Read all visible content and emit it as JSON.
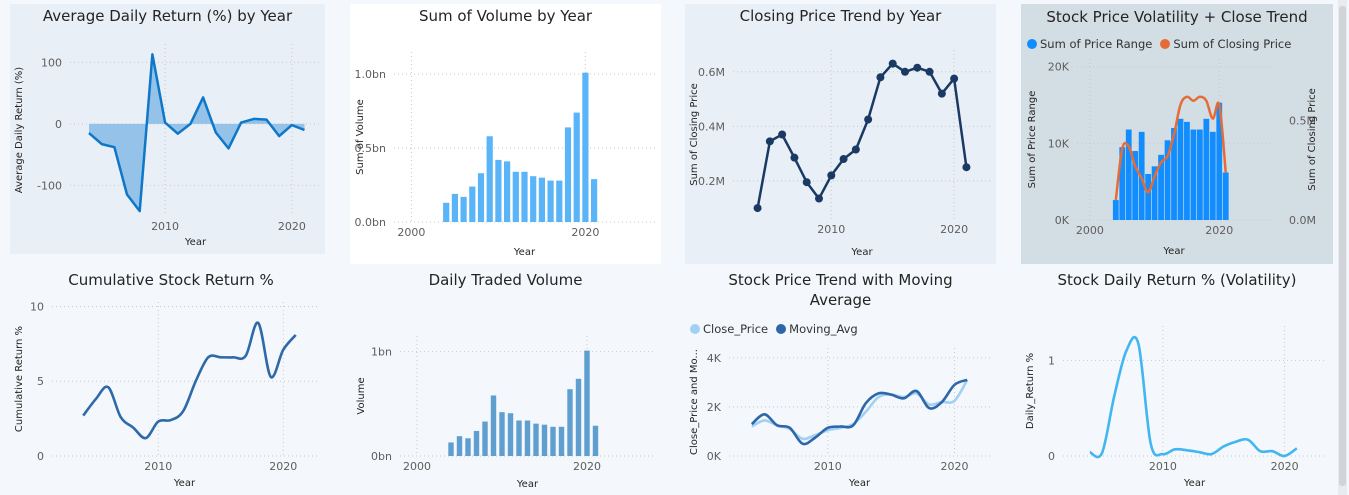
{
  "tiles": [
    {
      "title": "Average Daily Return (%) by Year",
      "chart_data": {
        "type": "area",
        "x": [
          2004,
          2005,
          2006,
          2007,
          2008,
          2009,
          2010,
          2011,
          2012,
          2013,
          2014,
          2015,
          2016,
          2017,
          2018,
          2019,
          2020,
          2021
        ],
        "values": [
          -15,
          -33,
          -38,
          -115,
          -142,
          113,
          2,
          -16,
          0,
          43,
          -14,
          -40,
          2,
          8,
          7,
          -20,
          -2,
          -10
        ],
        "xlim": [
          2002.5,
          2022.3
        ],
        "ylim": [
          -150,
          130
        ],
        "xticks": [
          2010,
          2020
        ],
        "yticks": [
          100,
          0,
          -100
        ],
        "xlabel": "Year",
        "ylabel": "Average Daily Return (%)",
        "color": "#0e77c8",
        "fill": "#8bbde6",
        "grid": true
      }
    },
    {
      "title": "Sum of Volume by Year",
      "chart_data": {
        "type": "bar",
        "x": [
          2004,
          2005,
          2006,
          2007,
          2008,
          2009,
          2010,
          2011,
          2012,
          2013,
          2014,
          2015,
          2016,
          2017,
          2018,
          2019,
          2020,
          2021
        ],
        "values": [
          0.13,
          0.19,
          0.17,
          0.24,
          0.33,
          0.58,
          0.42,
          0.41,
          0.34,
          0.34,
          0.31,
          0.3,
          0.28,
          0.28,
          0.64,
          0.74,
          1.01,
          0.29
        ],
        "xlim": [
          1998,
          2028
        ],
        "ylim": [
          0,
          1.15
        ],
        "xticks": [
          2000,
          2020
        ],
        "yticks": [
          1.0,
          0.5,
          0.0
        ],
        "ytick_labels": [
          "1.0bn",
          "0.5bn",
          "0.0bn"
        ],
        "xlabel": "Year",
        "ylabel": "Sum of Volume",
        "color": "#5ab5f8",
        "grid": true
      }
    },
    {
      "title": "Closing Price Trend by Year",
      "chart_data": {
        "type": "line",
        "x": [
          2004,
          2005,
          2006,
          2007,
          2008,
          2009,
          2010,
          2011,
          2012,
          2013,
          2014,
          2015,
          2016,
          2017,
          2018,
          2019,
          2020,
          2021
        ],
        "values": [
          0.1,
          0.345,
          0.37,
          0.285,
          0.195,
          0.135,
          0.22,
          0.28,
          0.315,
          0.425,
          0.58,
          0.63,
          0.6,
          0.615,
          0.6,
          0.52,
          0.575,
          0.25
        ],
        "xlim": [
          2002,
          2023
        ],
        "ylim": [
          0.06,
          0.68
        ],
        "xticks": [
          2010,
          2020
        ],
        "yticks": [
          0.6,
          0.4,
          0.2
        ],
        "ytick_labels": [
          "0.6M",
          "0.4M",
          "0.2M"
        ],
        "xlabel": "Year",
        "ylabel": "Sum of Closing Price",
        "color": "#1a3a63",
        "markers": true,
        "grid": true
      }
    },
    {
      "title": "Stock Price Volatility + Close Trend",
      "legend": [
        "Sum of Price Range",
        "Sum of Closing Price"
      ],
      "chart_data": {
        "type": "bar",
        "x": [
          2004,
          2005,
          2006,
          2007,
          2008,
          2009,
          2010,
          2011,
          2012,
          2013,
          2014,
          2015,
          2016,
          2017,
          2018,
          2019,
          2020,
          2021
        ],
        "series": [
          {
            "name": "Sum of Price Range",
            "type": "bar",
            "axis": "left",
            "values": [
              2600,
              9500,
              11800,
              9000,
              11500,
              6000,
              7000,
              8500,
              10400,
              12000,
              13200,
              12800,
              11800,
              11800,
              13200,
              11500,
              15300,
              6200
            ],
            "color": "#118dff"
          },
          {
            "name": "Sum of Closing Price",
            "type": "line",
            "axis": "right",
            "values": [
              0.1,
              0.36,
              0.37,
              0.27,
              0.21,
              0.14,
              0.22,
              0.29,
              0.32,
              0.43,
              0.58,
              0.62,
              0.6,
              0.62,
              0.6,
              0.51,
              0.58,
              0.24
            ],
            "color": "#e66c37"
          }
        ],
        "xlim": [
          1998,
          2028
        ],
        "ylim": [
          0,
          21000
        ],
        "y2lim": [
          0,
          0.81
        ],
        "xticks": [
          2000,
          2020
        ],
        "yticks": [
          20000,
          10000,
          0
        ],
        "ytick_labels": [
          "20K",
          "10K",
          "0K"
        ],
        "y2ticks": [
          0.5,
          0.0
        ],
        "y2tick_labels": [
          "0.5M",
          "0.0M"
        ],
        "xlabel": "Year",
        "ylabel": "Sum of Price Range",
        "y2label": "Sum of Closing Price",
        "grid": true
      }
    },
    {
      "title": "Cumulative Stock Return %",
      "chart_data": {
        "type": "line",
        "x": [
          2004,
          2005,
          2006,
          2007,
          2008,
          2009,
          2010,
          2011,
          2012,
          2013,
          2014,
          2015,
          2016,
          2017,
          2018,
          2019,
          2020,
          2021
        ],
        "values": [
          2.7,
          3.8,
          4.6,
          2.6,
          1.9,
          1.2,
          2.3,
          2.4,
          3.0,
          5.0,
          6.6,
          6.6,
          6.6,
          6.7,
          8.9,
          5.3,
          7.1,
          8.1
        ],
        "xlim": [
          2001.5,
          2022.7
        ],
        "ylim": [
          0,
          10.3
        ],
        "xticks": [
          2010,
          2020
        ],
        "yticks": [
          10,
          5,
          0
        ],
        "xlabel": "Year",
        "ylabel": "Cumulative Return %",
        "color": "#2e6aa8",
        "grid": true
      }
    },
    {
      "title": "Daily Traded Volume",
      "chart_data": {
        "type": "bar",
        "x": [
          2004,
          2005,
          2006,
          2007,
          2008,
          2009,
          2010,
          2011,
          2012,
          2013,
          2014,
          2015,
          2016,
          2017,
          2018,
          2019,
          2020,
          2021
        ],
        "values": [
          0.13,
          0.19,
          0.17,
          0.24,
          0.33,
          0.58,
          0.42,
          0.41,
          0.34,
          0.34,
          0.31,
          0.3,
          0.28,
          0.28,
          0.64,
          0.74,
          1.01,
          0.29
        ],
        "xlim": [
          1998,
          2028
        ],
        "ylim": [
          0,
          1.15
        ],
        "xticks": [
          2000,
          2020
        ],
        "yticks": [
          1.0,
          0.0
        ],
        "ytick_labels": [
          "1bn",
          "0bn"
        ],
        "xlabel": "Year",
        "ylabel": "Volume",
        "color": "#5f9fd0",
        "grid": true
      }
    },
    {
      "title": "Stock Price Trend with Moving Average",
      "legend": [
        "Close_Price",
        "Moving_Avg"
      ],
      "chart_data": {
        "type": "line",
        "x": [
          2004,
          2005,
          2006,
          2007,
          2008,
          2009,
          2010,
          2011,
          2012,
          2013,
          2014,
          2015,
          2016,
          2017,
          2018,
          2019,
          2020,
          2021
        ],
        "series": [
          {
            "name": "Close_Price",
            "values": [
              1200,
              1450,
              1250,
              1100,
              700,
              850,
              1050,
              1150,
              1300,
              1800,
              2400,
              2500,
              2400,
              2550,
              2100,
              2200,
              2250,
              3100
            ],
            "color": "#a0d1f2"
          },
          {
            "name": "Moving_Avg",
            "values": [
              1300,
              1700,
              1250,
              1150,
              500,
              750,
              1150,
              1200,
              1250,
              2150,
              2550,
              2500,
              2350,
              2650,
              1950,
              2200,
              2900,
              3100
            ],
            "color": "#2e66aa"
          }
        ],
        "xlim": [
          2002.2,
          2022.8
        ],
        "ylim": [
          0,
          4400
        ],
        "xticks": [
          2010,
          2020
        ],
        "yticks": [
          4000,
          2000,
          0
        ],
        "ytick_labels": [
          "4K",
          "2K",
          "0K"
        ],
        "xlabel": "Year",
        "ylabel": "Close_Price and Mo...",
        "grid": true
      }
    },
    {
      "title": "Stock Daily Return % (Volatility)",
      "chart_data": {
        "type": "line",
        "x": [
          2004,
          2005,
          2006,
          2007,
          2008,
          2009,
          2010,
          2011,
          2012,
          2013,
          2014,
          2015,
          2016,
          2017,
          2018,
          2019,
          2020,
          2021
        ],
        "values": [
          0.04,
          0.03,
          0.62,
          1.1,
          1.17,
          0.13,
          0.02,
          0.07,
          0.06,
          0.04,
          0.02,
          0.1,
          0.15,
          0.17,
          0.05,
          0.05,
          0.0,
          0.08
        ],
        "xlim": [
          2001.8,
          2023.4
        ],
        "ylim": [
          0,
          1.36
        ],
        "xticks": [
          2010,
          2020
        ],
        "yticks": [
          1,
          0
        ],
        "xlabel": "Year",
        "ylabel": "Daily_Return %",
        "color": "#41b6f0",
        "grid": true
      }
    }
  ]
}
